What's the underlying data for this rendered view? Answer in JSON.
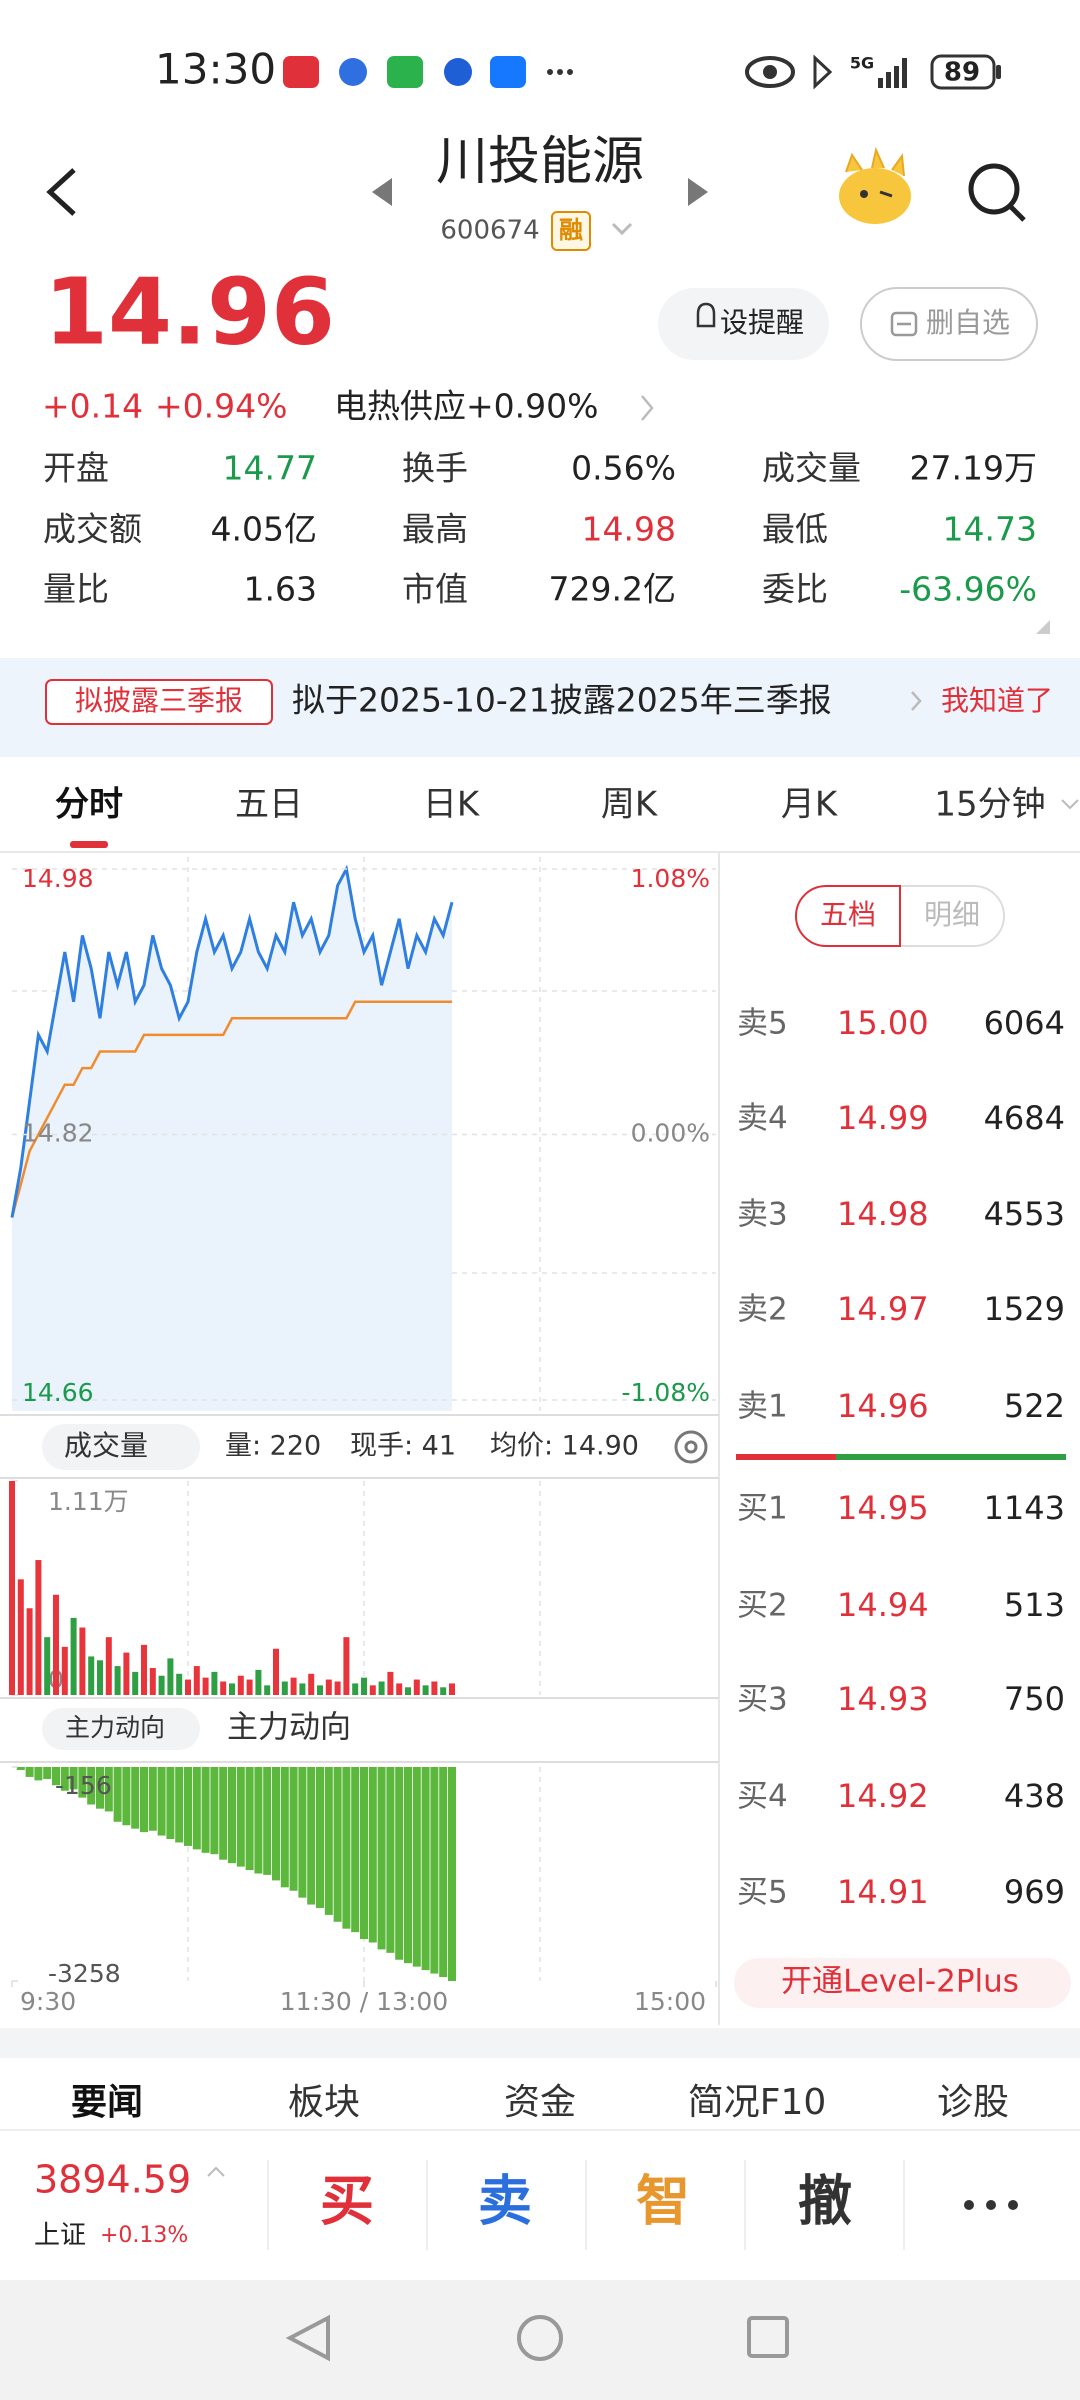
{
  "status_bar": {
    "time": "13:30",
    "network": "5G",
    "battery": "89"
  },
  "header": {
    "title": "川投能源",
    "code": "600674",
    "badge": "融"
  },
  "quote": {
    "price": "14.96",
    "change": "+0.14",
    "change_pct": "+0.94%",
    "sector": "电热供应+0.90%",
    "buttons": [
      "设提醒",
      "删自选"
    ],
    "stats": [
      [
        "开盘",
        "14.77"
      ],
      [
        "换手",
        "0.56%"
      ],
      [
        "成交量",
        "27.19万"
      ],
      [
        "成交额",
        "4.05亿"
      ],
      [
        "最高",
        "14.98"
      ],
      [
        "最低",
        "14.73"
      ],
      [
        "量比",
        "1.63"
      ],
      [
        "市值",
        "729.2亿"
      ],
      [
        "委比",
        "-63.96%"
      ]
    ]
  },
  "notice": {
    "tag": "拟披露三季报",
    "text": "拟于2025-10-21披露2025年三季报",
    "action": "我知道了"
  },
  "tabs": [
    "分时",
    "五日",
    "日K",
    "周K",
    "月K",
    "15分钟"
  ],
  "intraday": {
    "type": "line",
    "x": [
      0,
      3,
      6,
      9,
      12,
      15,
      18,
      21,
      24,
      27,
      30,
      33,
      36,
      39,
      42,
      45,
      48,
      51,
      54,
      57,
      60,
      63,
      66,
      69,
      72,
      75,
      78,
      81,
      84,
      87,
      90,
      93,
      96,
      99,
      102,
      105,
      108,
      111,
      114,
      117,
      120,
      123,
      126,
      129,
      132,
      135,
      138,
      141,
      144,
      147,
      150
    ],
    "price": [
      14.77,
      14.8,
      14.84,
      14.88,
      14.87,
      14.9,
      14.93,
      14.9,
      14.94,
      14.92,
      14.89,
      14.93,
      14.91,
      14.93,
      14.9,
      14.91,
      14.94,
      14.92,
      14.91,
      14.89,
      14.9,
      14.93,
      14.95,
      14.93,
      14.94,
      14.92,
      14.93,
      14.95,
      14.93,
      14.92,
      14.94,
      14.93,
      14.96,
      14.94,
      14.95,
      14.93,
      14.94,
      14.97,
      14.98,
      14.95,
      14.93,
      14.94,
      14.91,
      14.93,
      14.95,
      14.92,
      14.94,
      14.93,
      14.95,
      14.94,
      14.96
    ],
    "avg": [
      14.77,
      14.79,
      14.81,
      14.82,
      14.83,
      14.84,
      14.85,
      14.85,
      14.86,
      14.86,
      14.87,
      14.87,
      14.87,
      14.87,
      14.87,
      14.88,
      14.88,
      14.88,
      14.88,
      14.88,
      14.88,
      14.88,
      14.88,
      14.88,
      14.88,
      14.89,
      14.89,
      14.89,
      14.89,
      14.89,
      14.89,
      14.89,
      14.89,
      14.89,
      14.89,
      14.89,
      14.89,
      14.89,
      14.89,
      14.9,
      14.9,
      14.9,
      14.9,
      14.9,
      14.9,
      14.9,
      14.9,
      14.9,
      14.9,
      14.9,
      14.9
    ],
    "price_color": "#2f7fe0",
    "avg_color": "#f08c2e",
    "ylim": [
      14.66,
      14.98
    ],
    "yticks": [
      14.66,
      14.82,
      14.98
    ],
    "pct_ticks": [
      "-1.08%",
      "0.00%",
      "1.08%"
    ],
    "xlim": [
      0,
      240
    ],
    "xticks": [
      {
        "value": 0,
        "label": "9:30"
      },
      {
        "value": 120,
        "label": "11:30 / 13:00"
      },
      {
        "value": 240,
        "label": "15:00"
      }
    ]
  },
  "volume": {
    "type": "bar",
    "selector": "成交量",
    "stats": [
      "量: 220",
      "现手: 41",
      "均价: 14.90"
    ],
    "values": [
      11100,
      6000,
      4500,
      7000,
      3000,
      5200,
      2500,
      4000,
      3500,
      2000,
      1800,
      3000,
      1500,
      2200,
      1200,
      2600,
      1400,
      1000,
      1900,
      1100,
      800,
      1500,
      900,
      1200,
      700,
      600,
      1000,
      800,
      1300,
      500,
      2400,
      700,
      900,
      600,
      1100,
      500,
      800,
      700,
      3000,
      600,
      900,
      500,
      700,
      1200,
      600,
      400,
      800,
      500,
      700,
      400,
      600
    ],
    "ylim": [
      0,
      11100
    ],
    "yticks": [
      0,
      {
        "value": 11100,
        "label": "1.11万"
      }
    ],
    "up_color": "#e8343b",
    "down_color": "#2ea043"
  },
  "main_force": {
    "type": "bar",
    "selector": "主力动向",
    "title": "主力动向",
    "values": [
      -156,
      -200,
      -300,
      -350,
      -330,
      -420,
      -500,
      -480,
      -600,
      -700,
      -760,
      -800,
      -950,
      -1000,
      -1050,
      -1100,
      -1080,
      -1150,
      -1200,
      -1250,
      -1300,
      -1350,
      -1400,
      -1420,
      -1500,
      -1550,
      -1600,
      -1650,
      -1700,
      -1720,
      -1800,
      -1900,
      -1950,
      -2050,
      -2150,
      -2200,
      -2300,
      -2400,
      -2500,
      -2550,
      -2650,
      -2700,
      -2800,
      -2850,
      -2950,
      -3000,
      -3050,
      -3100,
      -3150,
      -3200,
      -3258
    ],
    "ylim": [
      -3258,
      -156
    ],
    "yticks": [
      -3258,
      -156
    ],
    "color": "#5cb83c"
  },
  "order_book": {
    "toggle": [
      "五档",
      "明细"
    ],
    "rows": [
      [
        "卖5",
        "15.00",
        "6064"
      ],
      [
        "卖4",
        "14.99",
        "4684"
      ],
      [
        "卖3",
        "14.98",
        "4553"
      ],
      [
        "卖2",
        "14.97",
        "1529"
      ],
      [
        "卖1",
        "14.96",
        "522"
      ],
      [
        "买1",
        "14.95",
        "1143"
      ],
      [
        "买2",
        "14.94",
        "513"
      ],
      [
        "买3",
        "14.93",
        "750"
      ],
      [
        "买4",
        "14.92",
        "438"
      ],
      [
        "买5",
        "14.91",
        "969"
      ]
    ],
    "upgrade": "开通Level-2Plus"
  },
  "news_tabs": [
    "要闻",
    "板块",
    "资金",
    "简况F10",
    "诊股"
  ],
  "bottom_bar": {
    "index_value": "3894.59",
    "index_name": "上证",
    "index_change": "+0.13%",
    "actions": [
      "买",
      "卖",
      "智",
      "撤"
    ]
  }
}
